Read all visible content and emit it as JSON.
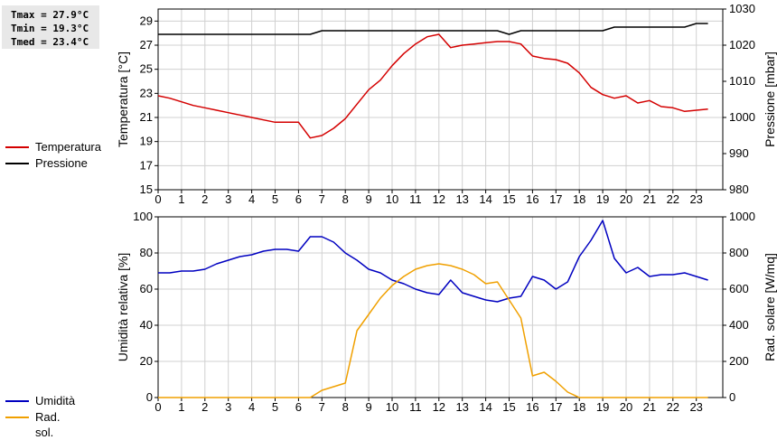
{
  "stats": {
    "tmax": "Tmax = 27.9°C",
    "tmin": "Tmin = 19.3°C",
    "tmed": "Tmed = 23.4°C"
  },
  "legend_top": [
    {
      "label": "Temperatura",
      "color": "#d40000"
    },
    {
      "label": "Pressione",
      "color": "#000000"
    }
  ],
  "legend_bottom": [
    {
      "label": "Umidità",
      "color": "#0000c0"
    },
    {
      "label": "Rad. sol.",
      "color": "#f0a000"
    }
  ],
  "chart_data": [
    {
      "type": "line",
      "xlabel": "",
      "ylabel": "Temperatura [°C]",
      "y2label": "Pressione [mbar]",
      "xlim": [
        0,
        24
      ],
      "ylim": [
        15,
        30
      ],
      "y2lim": [
        980,
        1030
      ],
      "xticks": [
        0,
        1,
        2,
        3,
        4,
        5,
        6,
        7,
        8,
        9,
        10,
        11,
        12,
        13,
        14,
        15,
        16,
        17,
        18,
        19,
        20,
        21,
        22,
        23
      ],
      "yticks": [
        15,
        17,
        19,
        21,
        23,
        25,
        27,
        29
      ],
      "y2ticks": [
        980,
        990,
        1000,
        1010,
        1020,
        1030
      ],
      "grid": true,
      "series": [
        {
          "name": "Temperatura",
          "axis": "left",
          "color": "#d40000",
          "x": [
            0,
            0.5,
            1,
            1.5,
            2,
            2.5,
            3,
            3.5,
            4,
            4.5,
            5,
            5.5,
            6,
            6.5,
            7,
            7.5,
            8,
            8.5,
            9,
            9.5,
            10,
            10.5,
            11,
            11.5,
            12,
            12.5,
            13,
            13.5,
            14,
            14.5,
            15,
            15.5,
            16,
            16.5,
            17,
            17.5,
            18,
            18.5,
            19,
            19.5,
            20,
            20.5,
            21,
            21.5,
            22,
            22.5,
            23,
            23.5
          ],
          "y": [
            22.8,
            22.6,
            22.3,
            22.0,
            21.8,
            21.6,
            21.4,
            21.2,
            21.0,
            20.8,
            20.6,
            20.6,
            20.6,
            19.3,
            19.5,
            20.1,
            20.9,
            22.1,
            23.3,
            24.1,
            25.3,
            26.3,
            27.1,
            27.7,
            27.9,
            26.8,
            27.0,
            27.1,
            27.2,
            27.3,
            27.3,
            27.1,
            26.1,
            25.9,
            25.8,
            25.5,
            24.7,
            23.5,
            22.9,
            22.6,
            22.8,
            22.2,
            22.4,
            21.9,
            21.8,
            21.5,
            21.6,
            21.7
          ]
        },
        {
          "name": "Pressione",
          "axis": "right",
          "color": "#000000",
          "x": [
            0,
            0.5,
            1,
            1.5,
            2,
            2.5,
            3,
            3.5,
            4,
            4.5,
            5,
            5.5,
            6,
            6.5,
            7,
            7.5,
            8,
            8.5,
            9,
            9.5,
            10,
            10.5,
            11,
            11.5,
            12,
            12.5,
            13,
            13.5,
            14,
            14.5,
            15,
            15.5,
            16,
            16.5,
            17,
            17.5,
            18,
            18.5,
            19,
            19.5,
            20,
            20.5,
            21,
            21.5,
            22,
            22.5,
            23,
            23.5
          ],
          "y": [
            1023,
            1023,
            1023,
            1023,
            1023,
            1023,
            1023,
            1023,
            1023,
            1023,
            1023,
            1023,
            1023,
            1023,
            1024,
            1024,
            1024,
            1024,
            1024,
            1024,
            1024,
            1024,
            1024,
            1024,
            1024,
            1024,
            1024,
            1024,
            1024,
            1024,
            1023,
            1024,
            1024,
            1024,
            1024,
            1024,
            1024,
            1024,
            1024,
            1025,
            1025,
            1025,
            1025,
            1025,
            1025,
            1025,
            1026,
            1026
          ]
        }
      ]
    },
    {
      "type": "line",
      "xlabel": "",
      "ylabel": "Umidità relativa [%]",
      "y2label": "Rad. solare [W/mq]",
      "xlim": [
        0,
        24
      ],
      "ylim": [
        0,
        100
      ],
      "y2lim": [
        0,
        1000
      ],
      "xticks": [
        0,
        1,
        2,
        3,
        4,
        5,
        6,
        7,
        8,
        9,
        10,
        11,
        12,
        13,
        14,
        15,
        16,
        17,
        18,
        19,
        20,
        21,
        22,
        23
      ],
      "yticks": [
        0,
        20,
        40,
        60,
        80,
        100
      ],
      "y2ticks": [
        0,
        200,
        400,
        600,
        800,
        1000
      ],
      "grid": true,
      "series": [
        {
          "name": "Umidità",
          "axis": "left",
          "color": "#0000c0",
          "x": [
            0,
            0.5,
            1,
            1.5,
            2,
            2.5,
            3,
            3.5,
            4,
            4.5,
            5,
            5.5,
            6,
            6.5,
            7,
            7.5,
            8,
            8.5,
            9,
            9.5,
            10,
            10.5,
            11,
            11.5,
            12,
            12.5,
            13,
            13.5,
            14,
            14.5,
            15,
            15.5,
            16,
            16.5,
            17,
            17.5,
            18,
            18.5,
            19,
            19.5,
            20,
            20.5,
            21,
            21.5,
            22,
            22.5,
            23,
            23.5
          ],
          "y": [
            69,
            69,
            70,
            70,
            71,
            74,
            76,
            78,
            79,
            81,
            82,
            82,
            81,
            89,
            89,
            86,
            80,
            76,
            71,
            69,
            65,
            63,
            60,
            58,
            57,
            65,
            58,
            56,
            54,
            53,
            55,
            56,
            67,
            65,
            60,
            64,
            78,
            87,
            98,
            77,
            69,
            72,
            67,
            68,
            68,
            69,
            67,
            65
          ]
        },
        {
          "name": "Rad. sol.",
          "axis": "right",
          "color": "#f0a000",
          "x": [
            0,
            0.5,
            1,
            1.5,
            2,
            2.5,
            3,
            3.5,
            4,
            4.5,
            5,
            5.5,
            6,
            6.5,
            7,
            7.5,
            8,
            8.5,
            9,
            9.5,
            10,
            10.5,
            11,
            11.5,
            12,
            12.5,
            13,
            13.5,
            14,
            14.5,
            15,
            15.5,
            16,
            16.5,
            17,
            17.5,
            18,
            18.5,
            19,
            19.5,
            20,
            20.5,
            21,
            21.5,
            22,
            22.5,
            23,
            23.5
          ],
          "y": [
            0,
            0,
            0,
            0,
            0,
            0,
            0,
            0,
            0,
            0,
            0,
            0,
            0,
            0,
            40,
            60,
            80,
            370,
            460,
            550,
            620,
            670,
            710,
            730,
            740,
            730,
            710,
            680,
            630,
            640,
            540,
            440,
            120,
            140,
            90,
            30,
            0,
            0,
            0,
            0,
            0,
            0,
            0,
            0,
            0,
            0,
            0,
            0
          ]
        }
      ]
    }
  ]
}
